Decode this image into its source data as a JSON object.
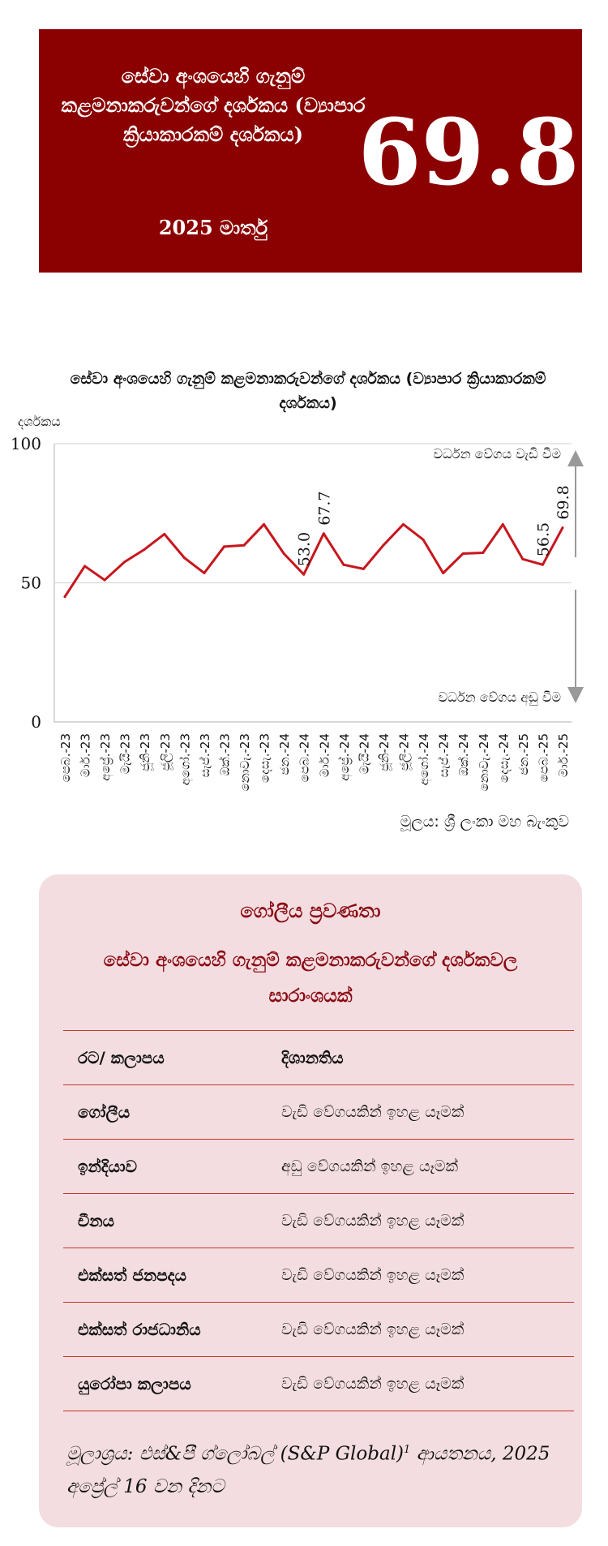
{
  "banner": {
    "title": "සේවා අංශයෙහි ගැනුම් කළමනාකරුවන්ගේ දර්ශකය (ව්‍යාපාර ක්‍රියාකාරකම් දර්ශකය)",
    "date": "2025 මාර්තු",
    "value": "69.8",
    "bg_color": "#8b0000"
  },
  "chart_data": {
    "type": "line",
    "title": "සේවා අංශයෙහි ගැනුම් කළමනාකරුවන්ගේ දර්ශකය (ව්‍යාපාර ක්‍රියාකාරකම් දර්ශකය)",
    "ylabel": "දර්ශකය",
    "xlabel": "",
    "ylim": [
      0,
      100
    ],
    "yticks": [
      0,
      50,
      100
    ],
    "grid": true,
    "line_color": "#c8161d",
    "categories": [
      "පෙබ.-23",
      "මාර්.-23",
      "අප්‍රේ.-23",
      "මැයි-23",
      "ජූනි-23",
      "ජූලි-23",
      "අගෝ.-23",
      "සැප්.-23",
      "ඔක්.-23",
      "නොවැ.-23",
      "දෙසැ.-23",
      "ජන.-24",
      "පෙබ.-24",
      "මාර්.-24",
      "අප්‍රේ.-24",
      "මැයි-24",
      "ජූනි-24",
      "ජූලි-24",
      "අගෝ.-24",
      "සැප්.-24",
      "ඔක්.-24",
      "නොවැ.-24",
      "දෙසැ.-24",
      "ජන.-25",
      "පෙබ.-25",
      "මාර්.-25"
    ],
    "values": [
      45.0,
      56.0,
      51.0,
      57.5,
      62.0,
      67.5,
      59.0,
      53.5,
      63.0,
      63.5,
      71.0,
      60.5,
      53.0,
      67.7,
      56.5,
      55.0,
      63.5,
      71.0,
      65.5,
      53.5,
      60.5,
      60.8,
      71.0,
      58.5,
      56.5,
      69.8
    ],
    "data_labels": [
      {
        "index": 12,
        "text": "53.0"
      },
      {
        "index": 13,
        "text": "67.7"
      },
      {
        "index": 24,
        "text": "56.5"
      },
      {
        "index": 25,
        "text": "69.8"
      }
    ],
    "annotations": {
      "up": "වර්ධන වේගය වැඩි වීම",
      "down": "වර්ධන වේගය අඩු වීම"
    },
    "source": "මූලය: ශ්‍රී ලංකා මහ බැංකුව"
  },
  "panel": {
    "heading": "ගෝලීය ප්‍රවණතා",
    "subheading": "සේවා අංශයෙහි ගැනුම් කළමනාකරුවන්ගේ දර්ශකවල සාරාංශයක්",
    "headers": [
      "රට/ කලාපය",
      "දිශානතිය"
    ],
    "rows": [
      {
        "region": "ගෝලීය",
        "direction": "වැඩි වේගයකින් ඉහළ යෑමක්"
      },
      {
        "region": "ඉන්දියාව",
        "direction": "අඩු වේගයකින් ඉහළ යෑමක්"
      },
      {
        "region": "චීනය",
        "direction": "වැඩි වේගයකින් ඉහළ යෑමක්"
      },
      {
        "region": "එක්සත් ජනපදය",
        "direction": "වැඩි වේගයකින් ඉහළ යෑමක්"
      },
      {
        "region": "එක්සත් රාජධානිය",
        "direction": "වැඩි වේගයකින් ඉහළ යෑමක්"
      },
      {
        "region": "යුරෝපා කලාපය",
        "direction": "වැඩි වේගයකින් ඉහළ යෑමක්"
      }
    ],
    "source": "මූලාශ්‍රය: එස්&පී ග්ලෝබල් (S&P Global)",
    "source_sup": "1",
    "source_tail": " ආයතනය, 2025 අප්‍රේල් 16 වන දිනට",
    "bg_color": "#f3dde0",
    "accent_color": "#8b0a14"
  }
}
